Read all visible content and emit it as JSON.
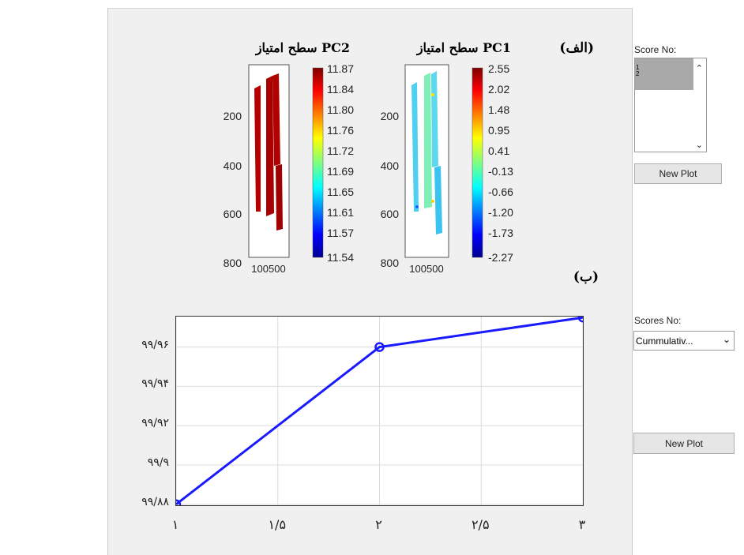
{
  "heatmap_panel": {
    "label_alef": "(الف)",
    "label_be": "(ب)",
    "pc1": {
      "title": "سطح امتیاز PC1",
      "y_ticks": [
        "200",
        "400",
        "600",
        "800"
      ],
      "x_tick_label": "100500",
      "colorbar_ticks": [
        "2.55",
        "2.02",
        "1.48",
        "0.95",
        "0.41",
        "-0.13",
        "-0.66",
        "-1.20",
        "-1.73",
        "-2.27"
      ]
    },
    "pc2": {
      "title": "سطح امتیاز PC2",
      "y_ticks": [
        "200",
        "400",
        "600",
        "800"
      ],
      "x_tick_label": "100500",
      "colorbar_ticks": [
        "11.87",
        "11.84",
        "11.80",
        "11.76",
        "11.72",
        "11.69",
        "11.65",
        "11.61",
        "11.57",
        "11.54"
      ]
    }
  },
  "controls": {
    "score_no_label": "Score No:",
    "score_list_items": [
      "1",
      "2"
    ],
    "new_plot_top": "New Plot",
    "scores_no_label": "Scores No:",
    "scores_dropdown_value": "Cummulativ...",
    "new_plot_bottom": "New Plot"
  },
  "chart_data": {
    "type": "line",
    "x": [
      1,
      2,
      3
    ],
    "y": [
      99.88,
      99.96,
      99.975
    ],
    "x_tick_values": [
      1,
      1.5,
      2,
      2.5,
      3
    ],
    "x_tick_labels": [
      "۱",
      "۱/۵",
      "۲",
      "۲/۵",
      "۳"
    ],
    "y_tick_values": [
      99.88,
      99.9,
      99.92,
      99.94,
      99.96
    ],
    "y_tick_labels": [
      "۹۹/۸۸",
      "۹۹/۹",
      "۹۹/۹۲",
      "۹۹/۹۴",
      "۹۹/۹۶"
    ],
    "xlim": [
      1,
      3
    ],
    "ylim": [
      99.8795,
      99.9755
    ],
    "grid": true,
    "line_color": "#1a1aff",
    "marker": "circle"
  }
}
